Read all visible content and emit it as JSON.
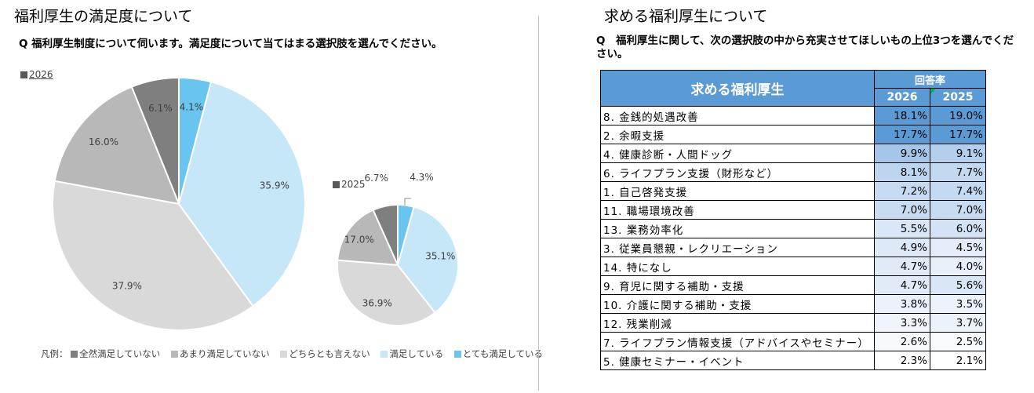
{
  "left": {
    "title": "福利厚生の満足度について",
    "question": "Q 福利厚生制度について伺います。満足度について当てはまる選択肢を選んでください。",
    "legend_prefix": "凡例：",
    "legend_colors": [
      "#7f7f7f",
      "#b8b8b8",
      "#d9d9d9",
      "#c5e7f8",
      "#6ac4f0"
    ]
  },
  "right": {
    "title": "求める福利厚生について",
    "question": "Q　福利厚生に関して、次の選択肢の中から充実させてほしいもの上位3つを選んでください。",
    "table": {
      "header_main": "求める福利厚生",
      "header_group": "回答率",
      "col_2026": "2026",
      "col_2025": "2025",
      "rows": [
        {
          "item": "8. 金銭的処遇改善",
          "v2026": "18.1%",
          "v2025": "19.0%",
          "c2026": "#5b9bd5",
          "c2025": "#5b9bd5"
        },
        {
          "item": "2. 余暇支援",
          "v2026": "17.7%",
          "v2025": "17.7%",
          "c2026": "#5b9bd5",
          "c2025": "#5b9bd5"
        },
        {
          "item": "4. 健康診断・人間ドッグ",
          "v2026": "9.9%",
          "v2025": "9.1%",
          "c2026": "#a5c5e9",
          "c2025": "#b4cfec"
        },
        {
          "item": "6. ライフプラン支援（財形など）",
          "v2026": "8.1%",
          "v2025": "7.7%",
          "c2026": "#bdd5ef",
          "c2025": "#c3d9f0"
        },
        {
          "item": "1. 自己啓発支援",
          "v2026": "7.2%",
          "v2025": "7.4%",
          "c2026": "#c6dbf1",
          "c2025": "#c4daf1"
        },
        {
          "item": "11. 職場環境改善",
          "v2026": "7.0%",
          "v2025": "7.0%",
          "c2026": "#c8dcf1",
          "c2025": "#c8dcf1"
        },
        {
          "item": "13. 業務効率化",
          "v2026": "5.5%",
          "v2025": "6.0%",
          "c2026": "#d9e7f6",
          "c2025": "#d3e3f4"
        },
        {
          "item": "3. 従業員懇親・レクリエーション",
          "v2026": "4.9%",
          "v2025": "4.5%",
          "c2026": "#dee9f7",
          "c2025": "#e3ecf8"
        },
        {
          "item": "14. 特になし",
          "v2026": "4.7%",
          "v2025": "4.0%",
          "c2026": "#e0ebf7",
          "c2025": "#e8f0fa"
        },
        {
          "item": "9. 育児に関する補助・支援",
          "v2026": "4.7%",
          "v2025": "5.6%",
          "c2026": "#e0ebf7",
          "c2025": "#d8e6f6"
        },
        {
          "item": "10. 介護に関する補助・支援",
          "v2026": "3.8%",
          "v2025": "3.5%",
          "c2026": "#eaf1fa",
          "c2025": "#edf3fb"
        },
        {
          "item": "12. 残業削減",
          "v2026": "3.3%",
          "v2025": "3.7%",
          "c2026": "#eff5fb",
          "c2025": "#ebf2fa"
        },
        {
          "item": "7. ライフプラン情報支援（アドバイスやセミナー）",
          "v2026": "2.6%",
          "v2025": "2.5%",
          "c2026": "#f7fafd",
          "c2025": "#f8fbfd"
        },
        {
          "item": "5. 健康セミナー・イベント",
          "v2026": "2.3%",
          "v2025": "2.1%",
          "c2026": "#ffffff",
          "c2025": "#ffffff"
        }
      ]
    }
  },
  "chart_data": [
    {
      "type": "pie",
      "title": "2026",
      "categories": [
        "全然満足していない",
        "あまり満足していない",
        "どちらとも言えない",
        "満足している",
        "とても満足している"
      ],
      "values": [
        6.1,
        16.0,
        37.9,
        35.9,
        4.1
      ],
      "labels": [
        "6.1%",
        "16.0%",
        "37.9%",
        "35.9%",
        "4.1%"
      ],
      "colors": [
        "#7f7f7f",
        "#b8b8b8",
        "#d9d9d9",
        "#c5e7f8",
        "#6ac4f0"
      ],
      "legend": "bottom"
    },
    {
      "type": "pie",
      "title": "2025",
      "categories": [
        "全然満足していない",
        "あまり満足していない",
        "どちらとも言えない",
        "満足している",
        "とても満足している"
      ],
      "values": [
        6.7,
        17.0,
        36.9,
        35.1,
        4.3
      ],
      "labels": [
        "6.7%",
        "17.0%",
        "36.9%",
        "35.1%",
        "4.3%"
      ],
      "colors": [
        "#7f7f7f",
        "#b8b8b8",
        "#d9d9d9",
        "#c5e7f8",
        "#6ac4f0"
      ],
      "legend": "bottom"
    }
  ]
}
